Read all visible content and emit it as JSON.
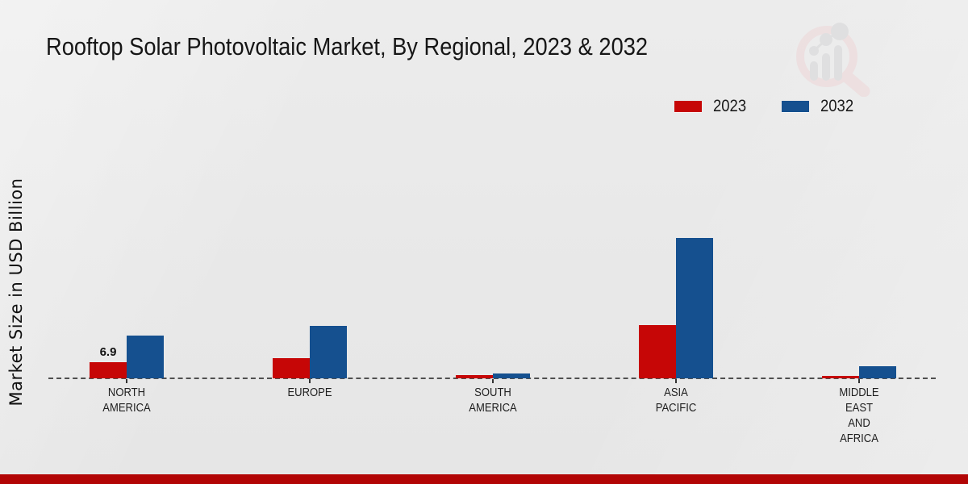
{
  "title": "Rooftop Solar Photovoltaic Market, By Regional, 2023 & 2032",
  "y_axis_label": "Market Size in USD Billion",
  "legend": [
    {
      "label": "2023",
      "color": "#c60606"
    },
    {
      "label": "2032",
      "color": "#15508f"
    }
  ],
  "watermark": "market-research-future-logo",
  "colors": {
    "series_2023": "#c60606",
    "series_2032": "#15508f",
    "footer_band": "#b20505",
    "baseline": "#4f4f4f",
    "background": "#e9e9e9"
  },
  "chart_data": {
    "type": "bar",
    "title": "Rooftop Solar Photovoltaic Market, By Regional, 2023 & 2032",
    "xlabel": "",
    "ylabel": "Market Size in USD Billion",
    "categories": [
      "NORTH AMERICA",
      "EUROPE",
      "SOUTH AMERICA",
      "ASIA PACIFIC",
      "MIDDLE EAST AND AFRICA"
    ],
    "category_lines": [
      [
        "NORTH",
        "AMERICA"
      ],
      [
        "EUROPE"
      ],
      [
        "SOUTH",
        "AMERICA"
      ],
      [
        "ASIA",
        "PACIFIC"
      ],
      [
        "MIDDLE",
        "EAST",
        "AND",
        "AFRICA"
      ]
    ],
    "series": [
      {
        "name": "2023",
        "color": "#c60606",
        "values": [
          6.9,
          8.5,
          1.4,
          22.9,
          1.2
        ]
      },
      {
        "name": "2032",
        "color": "#15508f",
        "values": [
          18.2,
          22.3,
          2.2,
          59.9,
          5.0
        ]
      }
    ],
    "data_labels": [
      {
        "series_index": 0,
        "category_index": 0,
        "text": "6.9"
      }
    ],
    "ylim": [
      0,
      65
    ],
    "grid": false,
    "axis_line_style": "dashed",
    "legend_position": "top-right"
  }
}
